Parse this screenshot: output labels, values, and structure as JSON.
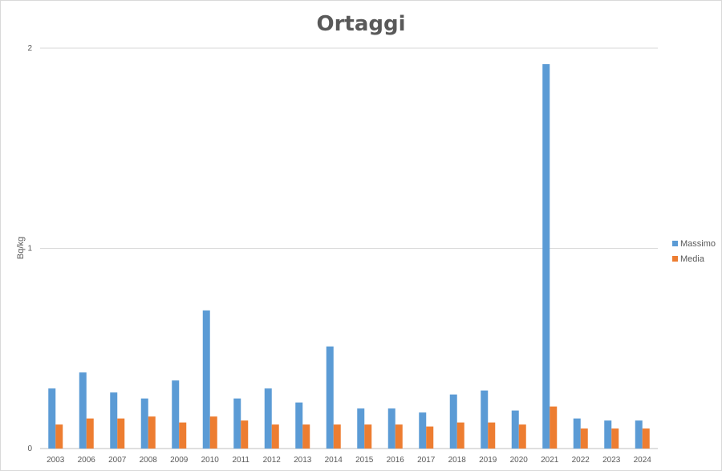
{
  "chart_data": {
    "type": "bar",
    "title": "Ortaggi",
    "xlabel": "",
    "ylabel": "Bq/kg",
    "ylim": [
      0,
      2
    ],
    "yticks": [
      "0",
      "1",
      "2"
    ],
    "grid": true,
    "legend_position": "right",
    "categories": [
      "2003",
      "2006",
      "2007",
      "2008",
      "2009",
      "2010",
      "2011",
      "2012",
      "2013",
      "2014",
      "2015",
      "2016",
      "2017",
      "2018",
      "2019",
      "2020",
      "2021",
      "2022",
      "2023",
      "2024"
    ],
    "series": [
      {
        "name": "Massimo",
        "color": "#5b9bd5",
        "values": [
          0.3,
          0.38,
          0.28,
          0.25,
          0.34,
          0.69,
          0.25,
          0.3,
          0.23,
          0.51,
          0.2,
          0.2,
          0.18,
          0.27,
          0.29,
          0.19,
          1.92,
          0.15,
          0.14,
          0.14
        ]
      },
      {
        "name": "Media",
        "color": "#ed7d31",
        "values": [
          0.12,
          0.15,
          0.15,
          0.16,
          0.13,
          0.16,
          0.14,
          0.12,
          0.12,
          0.12,
          0.12,
          0.12,
          0.11,
          0.13,
          0.13,
          0.12,
          0.21,
          0.1,
          0.1,
          0.1
        ]
      }
    ]
  }
}
